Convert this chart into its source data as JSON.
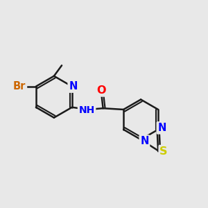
{
  "bg_color": "#e8e8e8",
  "bond_color": "#1a1a1a",
  "bond_width": 1.8,
  "atom_colors": {
    "N": "#0000ff",
    "O": "#ff0000",
    "S": "#cccc00",
    "Br": "#cc6600",
    "C": "#1a1a1a",
    "H": "#1a1a1a"
  },
  "font_size": 10.5
}
